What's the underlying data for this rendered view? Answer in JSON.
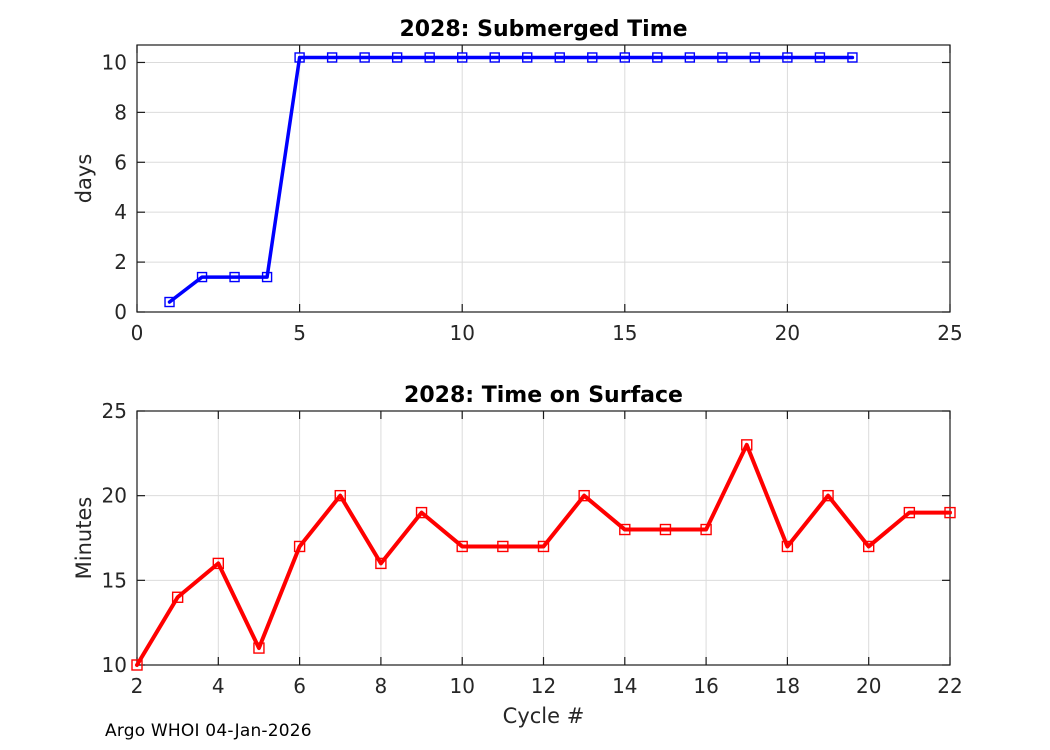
{
  "figure": {
    "background": "#FFFFFF"
  },
  "colors": {
    "axis": "#1A1A1A",
    "grid": "#DBDBDB",
    "tick_label": "#262626",
    "axis_label": "#262626",
    "title": "#000000",
    "submerged_line": "#0000FF",
    "surface_line": "#FF0000"
  },
  "footer": {
    "text": "Argo WHOI 04-Jan-2026"
  },
  "chart_data": [
    {
      "id": "submerged-time-chart",
      "type": "line",
      "title": "2028: Submerged Time",
      "xlabel": "",
      "ylabel": "days",
      "marker": "square",
      "line_color": "#0000FF",
      "x": [
        1,
        2,
        3,
        4,
        5,
        6,
        7,
        8,
        9,
        10,
        11,
        12,
        13,
        14,
        15,
        16,
        17,
        18,
        19,
        20,
        21,
        22
      ],
      "y": [
        0.4,
        1.4,
        1.4,
        1.4,
        10.2,
        10.2,
        10.2,
        10.2,
        10.2,
        10.2,
        10.2,
        10.2,
        10.2,
        10.2,
        10.2,
        10.2,
        10.2,
        10.2,
        10.2,
        10.2,
        10.2,
        10.2
      ],
      "xlim": [
        0,
        25
      ],
      "ylim": [
        0,
        10.7
      ],
      "xticks": [
        0,
        5,
        10,
        15,
        20,
        25
      ],
      "yticks": [
        0,
        2,
        4,
        6,
        8,
        10
      ],
      "grid": true,
      "legend": null
    },
    {
      "id": "time-on-surface-chart",
      "type": "line",
      "title": "2028: Time on Surface",
      "xlabel": "Cycle #",
      "ylabel": "Minutes",
      "marker": "square",
      "line_color": "#FF0000",
      "x": [
        2,
        3,
        4,
        5,
        6,
        7,
        8,
        9,
        10,
        11,
        12,
        13,
        14,
        15,
        16,
        17,
        18,
        19,
        20,
        21,
        22
      ],
      "y": [
        10,
        14,
        16,
        11,
        17,
        20,
        16,
        19,
        17,
        17,
        17,
        20,
        18,
        18,
        18,
        23,
        17,
        20,
        17,
        19,
        19
      ],
      "xlim": [
        2,
        22
      ],
      "ylim": [
        10,
        25
      ],
      "xticks": [
        2,
        4,
        6,
        8,
        10,
        12,
        14,
        16,
        18,
        20,
        22
      ],
      "yticks": [
        10,
        15,
        20,
        25
      ],
      "grid": true,
      "legend": null
    }
  ]
}
